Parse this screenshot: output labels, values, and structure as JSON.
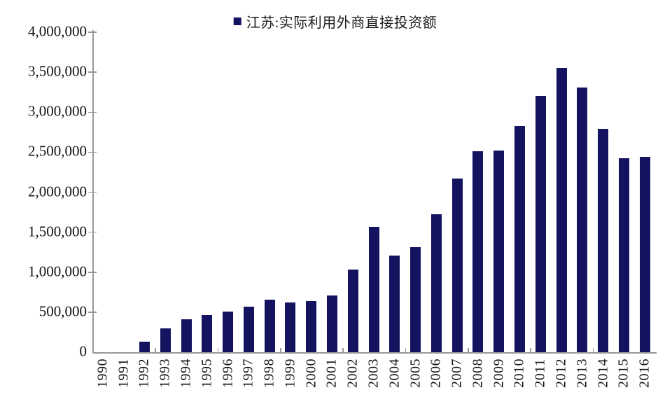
{
  "chart_data": {
    "type": "bar",
    "title": "",
    "legend": "江苏:实际利用外商直接投资额",
    "legend_position": "top-center",
    "grid": "off",
    "categories": [
      "1990",
      "1991",
      "1992",
      "1993",
      "1994",
      "1995",
      "1996",
      "1997",
      "1998",
      "1999",
      "2000",
      "2001",
      "2002",
      "2003",
      "2004",
      "2005",
      "2006",
      "2007",
      "2008",
      "2009",
      "2010",
      "2011",
      "2012",
      "2013",
      "2014",
      "2015",
      "2016"
    ],
    "values": [
      0,
      0,
      135000,
      295000,
      410000,
      460000,
      505000,
      565000,
      655000,
      620000,
      640000,
      705000,
      1030000,
      1565000,
      1205000,
      1310000,
      1725000,
      2170000,
      2510000,
      2525000,
      2825000,
      3200000,
      3555000,
      3305000,
      2795000,
      2425000,
      2440000
    ],
    "xlabel": "",
    "ylabel": "",
    "ylim": [
      0,
      4000000
    ],
    "y_tick_step": 500000,
    "y_tick_labels": [
      "0",
      "500,000",
      "1,000,000",
      "1,500,000",
      "2,000,000",
      "2,500,000",
      "3,000,000",
      "3,500,000",
      "4,000,000"
    ],
    "colors": {
      "bar": "#131360",
      "axis": "#999999",
      "text": "#111111",
      "background": "#ffffff"
    }
  }
}
